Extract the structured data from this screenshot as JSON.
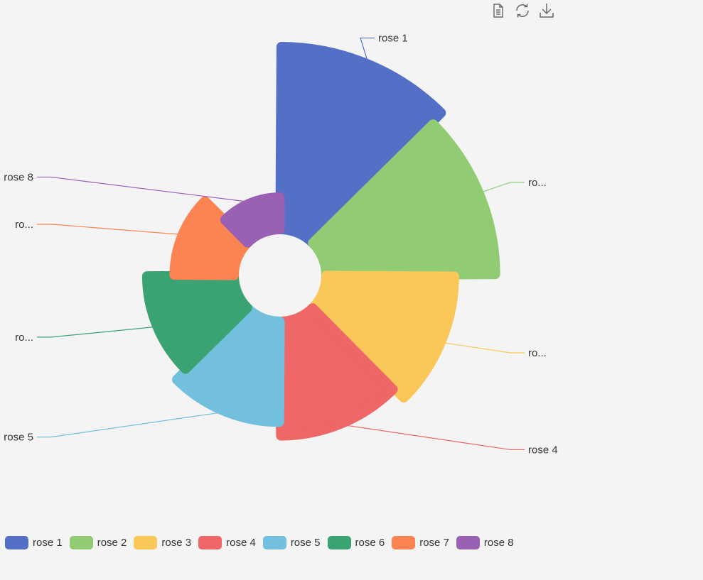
{
  "toolbox": {
    "data_view_icon": "data-view-icon",
    "restore_icon": "restore-icon",
    "save_image_icon": "save-image-icon"
  },
  "chart_data": {
    "type": "pie",
    "rose_type": "area",
    "labels": [
      "rose 1",
      "rose 2",
      "rose 3",
      "rose 4",
      "rose 5",
      "rose 6",
      "rose 7",
      "rose 8"
    ],
    "display_labels": [
      "rose 1",
      "ro...",
      "ro...",
      "rose 4",
      "rose 5",
      "ro...",
      "ro...",
      "rose 8"
    ],
    "values": [
      40,
      38,
      32,
      30,
      28,
      26,
      22,
      18
    ],
    "colors": [
      "#5470c6",
      "#91cc75",
      "#fac858",
      "#ee6666",
      "#73c0de",
      "#3ba272",
      "#fc8452",
      "#9a60b4"
    ],
    "legend_placement": "bottom"
  }
}
